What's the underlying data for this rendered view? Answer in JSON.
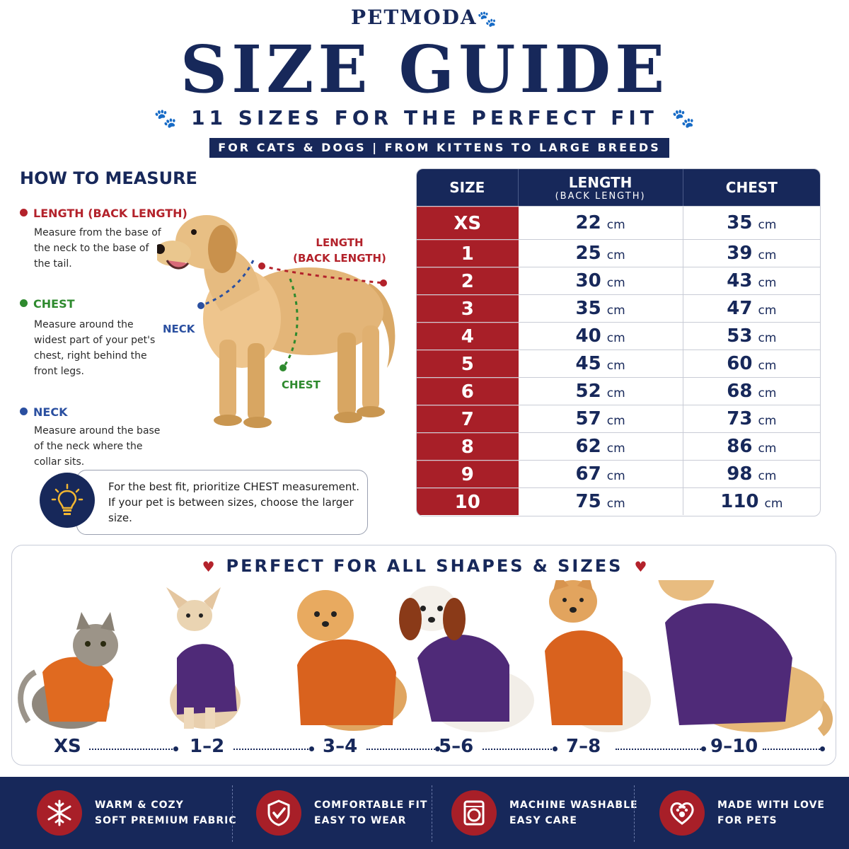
{
  "header": {
    "brand": "PETMODA",
    "title": "SIZE GUIDE",
    "subtitle": "11 SIZES FOR THE PERFECT FIT",
    "ribbon": "FOR CATS & DOGS  |  FROM KITTENS TO LARGE BREEDS"
  },
  "measure": {
    "title": "HOW TO MEASURE",
    "length_head": "LENGTH (BACK LENGTH)",
    "length_body": "Measure from the base of the neck to the base of the tail.",
    "chest_head": "CHEST",
    "chest_body": "Measure around the widest part of your pet's chest, right behind the front legs.",
    "neck_head": "NECK",
    "neck_body": "Measure around the base of the neck where the collar sits.",
    "dog_label_length_1": "LENGTH",
    "dog_label_length_2": "(BACK LENGTH)",
    "dog_label_neck": "NECK",
    "dog_label_chest": "CHEST",
    "tip": "For the best fit, prioritize CHEST measurement. If your pet is between sizes, choose the larger size.",
    "colors": {
      "length": "#b3222b",
      "chest": "#2e8a2e",
      "neck": "#2a4fa0"
    }
  },
  "table": {
    "headers": {
      "size": "SIZE",
      "length": "LENGTH",
      "length_sub": "(BACK LENGTH)",
      "chest": "CHEST"
    },
    "unit": "cm",
    "rows": [
      {
        "size": "XS",
        "length": "22",
        "chest": "35"
      },
      {
        "size": "1",
        "length": "25",
        "chest": "39"
      },
      {
        "size": "2",
        "length": "30",
        "chest": "43"
      },
      {
        "size": "3",
        "length": "35",
        "chest": "47"
      },
      {
        "size": "4",
        "length": "40",
        "chest": "53"
      },
      {
        "size": "5",
        "length": "45",
        "chest": "60"
      },
      {
        "size": "6",
        "length": "52",
        "chest": "68"
      },
      {
        "size": "7",
        "length": "57",
        "chest": "73"
      },
      {
        "size": "8",
        "length": "62",
        "chest": "86"
      },
      {
        "size": "9",
        "length": "67",
        "chest": "98"
      },
      {
        "size": "10",
        "length": "75",
        "chest": "110"
      }
    ]
  },
  "shapes": {
    "title": "PERFECT FOR ALL SHAPES & SIZES",
    "labels": [
      "XS",
      "1–2",
      "3–4",
      "5–6",
      "7–8",
      "9–10"
    ]
  },
  "features": [
    {
      "line1": "WARM & COZY",
      "line2": "SOFT PREMIUM FABRIC",
      "icon": "snowflake-icon"
    },
    {
      "line1": "COMFORTABLE FIT",
      "line2": "EASY TO WEAR",
      "icon": "shield-check-icon"
    },
    {
      "line1": "MACHINE WASHABLE",
      "line2": "EASY CARE",
      "icon": "washing-machine-icon"
    },
    {
      "line1": "MADE WITH LOVE",
      "line2": "FOR PETS",
      "icon": "heart-paw-icon"
    }
  ],
  "colors": {
    "navy": "#17285a",
    "red": "#a81f28",
    "orange": "#d9621e",
    "purple": "#4f2a78"
  }
}
